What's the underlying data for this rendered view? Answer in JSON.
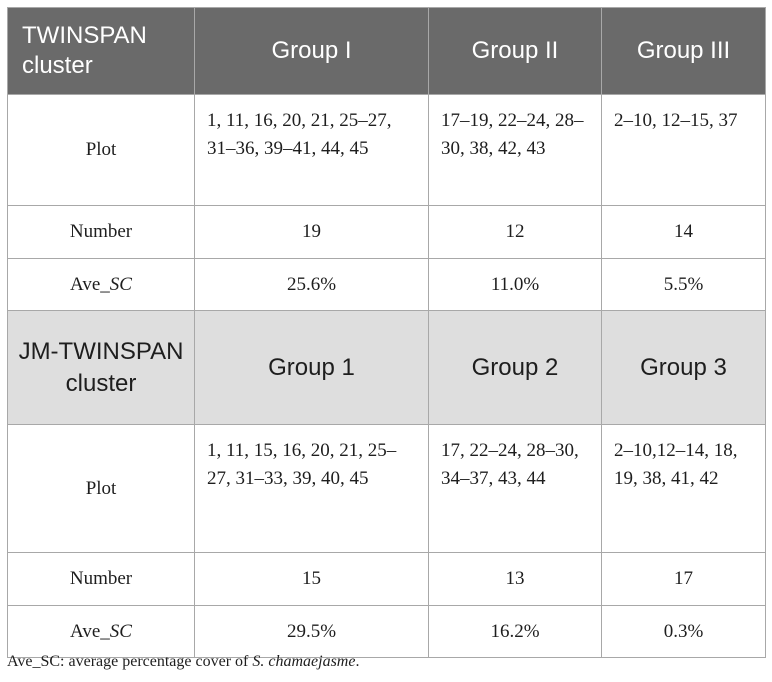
{
  "table": {
    "header1": [
      "TWINSPAN cluster",
      "Group I",
      "Group II",
      "Group III"
    ],
    "section1": {
      "plot": {
        "label": "Plot",
        "values": [
          "1, 11, 16, 20, 21, 25–27, 31–36, 39–41, 44, 45",
          "17–19, 22–24, 28–30, 38, 42, 43",
          "2–10, 12–15, 37"
        ]
      },
      "number": {
        "label": "Number",
        "values": [
          "19",
          "12",
          "14"
        ]
      },
      "ave": {
        "label_prefix": "Ave_",
        "label_italic": "SC",
        "values": [
          "25.6%",
          "11.0%",
          "5.5%"
        ]
      }
    },
    "header2": [
      "JM-TWINSPAN cluster",
      "Group 1",
      "Group 2",
      "Group 3"
    ],
    "section2": {
      "plot": {
        "label": "Plot",
        "values": [
          "1, 11, 15, 16, 20, 21, 25–27, 31–33, 39, 40, 45",
          "17, 22–24, 28–30, 34–37, 43, 44",
          "2–10,12–14, 18, 19, 38, 41, 42"
        ]
      },
      "number": {
        "label": "Number",
        "values": [
          "15",
          "13",
          "17"
        ]
      },
      "ave": {
        "label_prefix": "Ave_",
        "label_italic": "SC",
        "values": [
          "29.5%",
          "16.2%",
          "0.3%"
        ]
      }
    }
  },
  "footnote": {
    "text": "Ave_SC: average percentage cover of ",
    "italic": "S. chamaejasme",
    "end": "."
  }
}
